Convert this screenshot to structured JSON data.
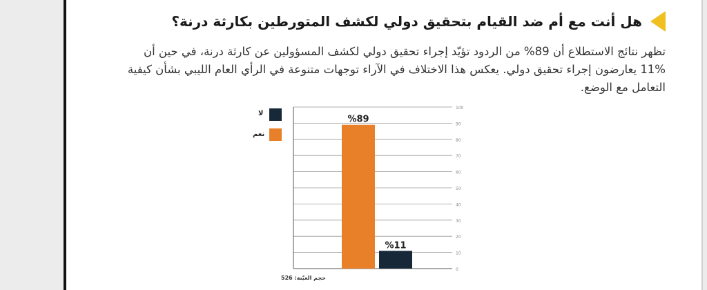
{
  "title": "هل أنت مع أم ضد القيام بتحقيق دولي لكشف المتورطين بكارثة درنة؟",
  "paragraph": {
    "line1": "تظهر نتائج الاستطلاع أن 89% من الردود تؤيّد إجراء تحقيق دولي لكشف المسؤولين عن كارثة درنة، في حين أن",
    "line2": "11% يعارضون إجراء تحقيق دولي. يعكس هذا الاختلاف في الآراء توجهات متنوعة في الرأي العام الليبي بشأن كيفية",
    "line3": "التعامل مع الوضع."
  },
  "sample_size": "حجم العيّنة: 526",
  "colors": {
    "yes": "#e8802a",
    "no": "#172838",
    "accent": "#f0c020"
  },
  "chart_data": {
    "type": "bar",
    "categories": [
      "نعم",
      "لا"
    ],
    "values": [
      89,
      11
    ],
    "value_labels": [
      "%89",
      "%11"
    ],
    "legend": [
      "لا",
      "نعم"
    ],
    "ylim": [
      0,
      100
    ],
    "yticks": [
      0,
      10,
      20,
      30,
      40,
      50,
      60,
      70,
      80,
      90,
      100
    ],
    "grid": true,
    "legend_position": "top-left"
  }
}
